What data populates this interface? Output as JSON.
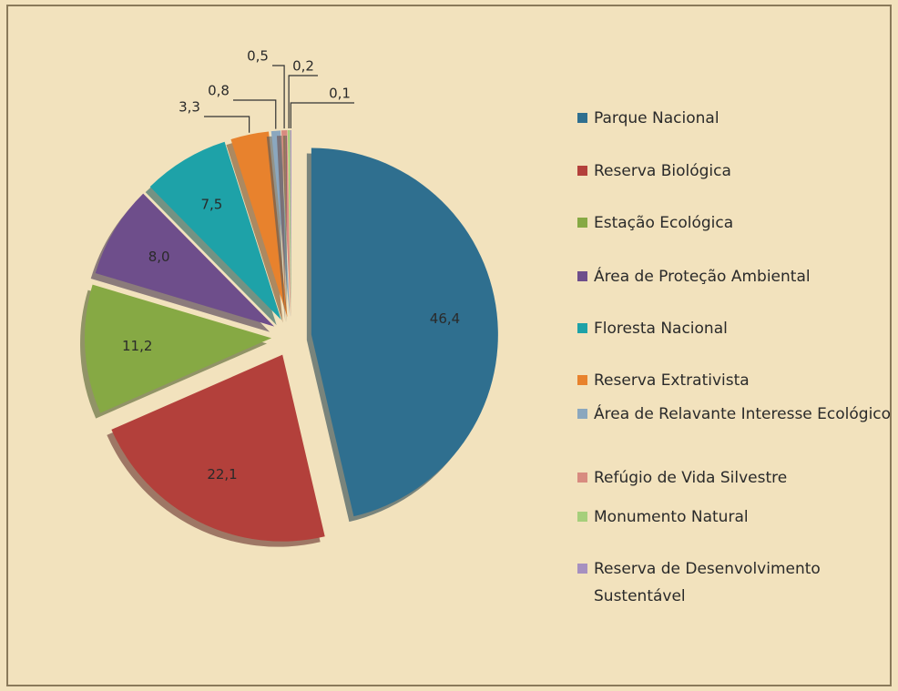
{
  "chart_data": {
    "type": "pie",
    "categories": [
      "Parque Nacional",
      "Reserva Biológica",
      "Estação Ecológica",
      "Área de Proteção Ambiental",
      "Floresta Nacional",
      "Reserva Extrativista",
      "Área de Relavante Interesse Ecológico",
      "Refúgio de Vida Silvestre",
      "Monumento Natural",
      "Reserva de Desenvolvimento Sustentável"
    ],
    "values": [
      46.4,
      22.1,
      11.2,
      8,
      7.5,
      3.3,
      0.8,
      0.5,
      0.2,
      0.1
    ],
    "value_labels": [
      "46,4",
      "22,1",
      "11,2",
      "8,0",
      "7,5",
      "3,3",
      "0,8",
      "0,5",
      "0,2",
      "0,1"
    ],
    "colors": [
      "#2f6f8f",
      "#b3403b",
      "#86a944",
      "#6e4e8b",
      "#1ea2a8",
      "#e8822d",
      "#8ba7be",
      "#d88b80",
      "#a6cf7b",
      "#a690c0"
    ]
  }
}
